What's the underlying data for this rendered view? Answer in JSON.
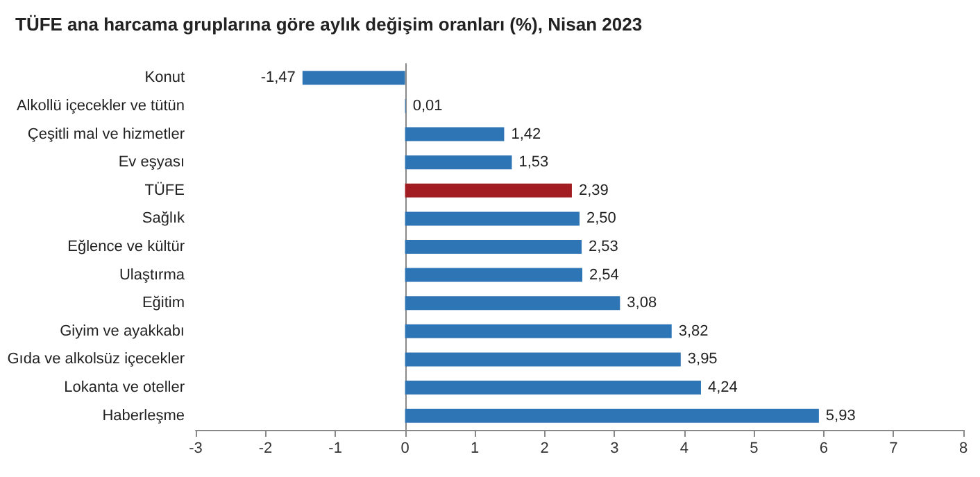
{
  "chart_data": {
    "type": "bar",
    "orientation": "horizontal",
    "title": "TÜFE ana harcama gruplarına göre aylık değişim oranları (%), Nisan 2023",
    "categories": [
      "Konut",
      "Alkollü içecekler ve tütün",
      "Çeşitli mal ve hizmetler",
      "Ev eşyası",
      "TÜFE",
      "Sağlık",
      "Eğlence ve kültür",
      "Ulaştırma",
      "Eğitim",
      "Giyim ve ayakkabı",
      "Gıda ve alkolsüz içecekler",
      "Lokanta ve oteller",
      "Haberleşme"
    ],
    "values": [
      -1.47,
      0.01,
      1.42,
      1.53,
      2.39,
      2.5,
      2.53,
      2.54,
      3.08,
      3.82,
      3.95,
      4.24,
      5.93
    ],
    "value_labels": [
      "-1,47",
      "0,01",
      "1,42",
      "1,53",
      "2,39",
      "2,50",
      "2,53",
      "2,54",
      "3,08",
      "3,82",
      "3,95",
      "4,24",
      "5,93"
    ],
    "colors": [
      "#2e75b6",
      "#2e75b6",
      "#2e75b6",
      "#2e75b6",
      "#a11d21",
      "#2e75b6",
      "#2e75b6",
      "#2e75b6",
      "#2e75b6",
      "#2e75b6",
      "#2e75b6",
      "#2e75b6",
      "#2e75b6"
    ],
    "xlim": [
      -3,
      8
    ],
    "xticks": [
      -3,
      -2,
      -1,
      0,
      1,
      2,
      3,
      4,
      5,
      6,
      7,
      8
    ]
  }
}
